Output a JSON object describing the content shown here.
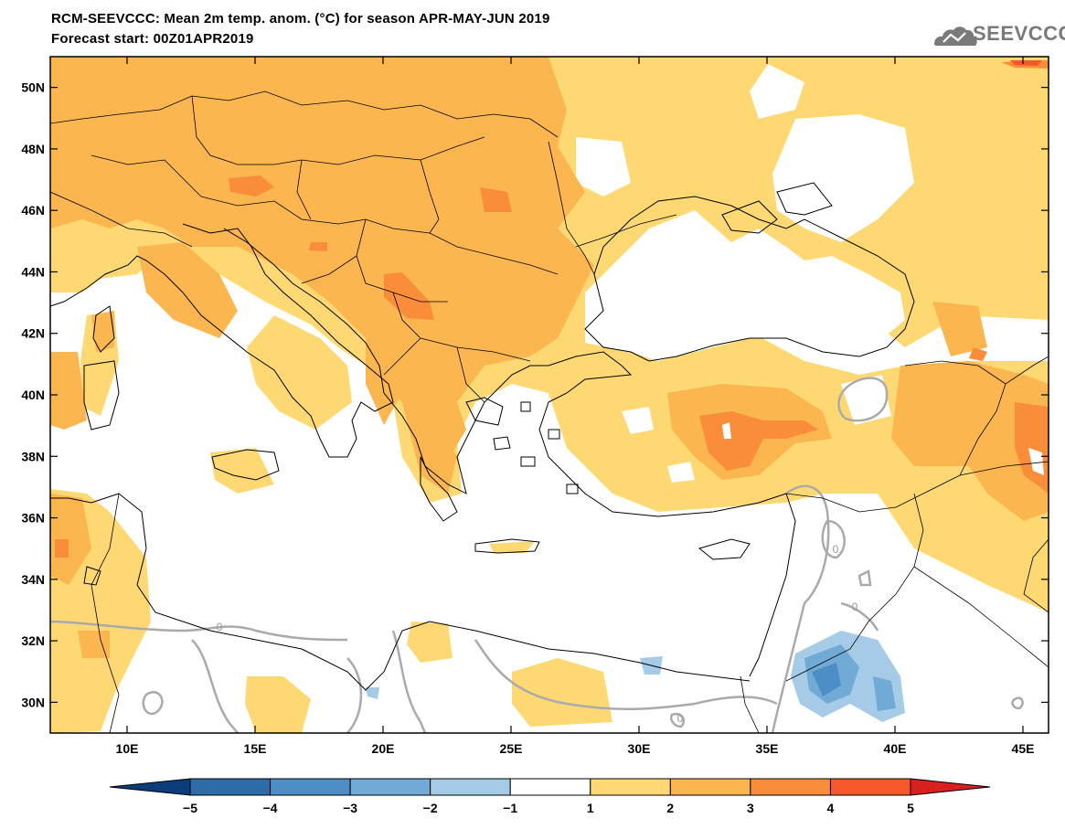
{
  "header": {
    "title_line1": "RCM-SEEVCCC: Mean 2m temp. anom. (°C) for season APR-MAY-JUN 2019",
    "title_line2": "Forecast start: 00Z01APR2019"
  },
  "logo": {
    "text": "SEEVCCC",
    "icon": "cloud-logo-icon",
    "color": "#7a7a7a"
  },
  "map": {
    "lon_range": [
      7,
      46
    ],
    "lat_range": [
      29,
      51
    ],
    "lon_ticks": [
      {
        "value": 10,
        "label": "10E"
      },
      {
        "value": 15,
        "label": "15E"
      },
      {
        "value": 20,
        "label": "20E"
      },
      {
        "value": 25,
        "label": "25E"
      },
      {
        "value": 30,
        "label": "30E"
      },
      {
        "value": 35,
        "label": "35E"
      },
      {
        "value": 40,
        "label": "40E"
      },
      {
        "value": 45,
        "label": "45E"
      }
    ],
    "lat_ticks": [
      {
        "value": 30,
        "label": "30N"
      },
      {
        "value": 32,
        "label": "32N"
      },
      {
        "value": 34,
        "label": "34N"
      },
      {
        "value": 36,
        "label": "36N"
      },
      {
        "value": 38,
        "label": "38N"
      },
      {
        "value": 40,
        "label": "40N"
      },
      {
        "value": 42,
        "label": "42N"
      },
      {
        "value": 44,
        "label": "44N"
      },
      {
        "value": 46,
        "label": "46N"
      },
      {
        "value": 48,
        "label": "48N"
      },
      {
        "value": 50,
        "label": "50N"
      }
    ],
    "zero_contour_label": "0"
  },
  "colorbar": {
    "levels": [
      "−5",
      "−4",
      "−3",
      "−2",
      "−1",
      "1",
      "2",
      "3",
      "4",
      "5"
    ],
    "colors": [
      "#0a3d7a",
      "#2e6ca8",
      "#4e8ec6",
      "#72aad6",
      "#a6cbe6",
      "#ffffff",
      "#fdd873",
      "#fcb64f",
      "#f98d3a",
      "#f5582a",
      "#d8201e"
    ]
  },
  "palette": {
    "anom_1_2": "#fdd873",
    "anom_2_3": "#fcb64f",
    "anom_3_4": "#f98d3a",
    "anom_4_5": "#f5582a",
    "anom_gt5": "#d8201e",
    "anom_m1_m2": "#a6cbe6",
    "anom_m2_m3": "#72aad6",
    "anom_m3_m4": "#4e8ec6",
    "zero_contour": "#aaaaaa"
  }
}
